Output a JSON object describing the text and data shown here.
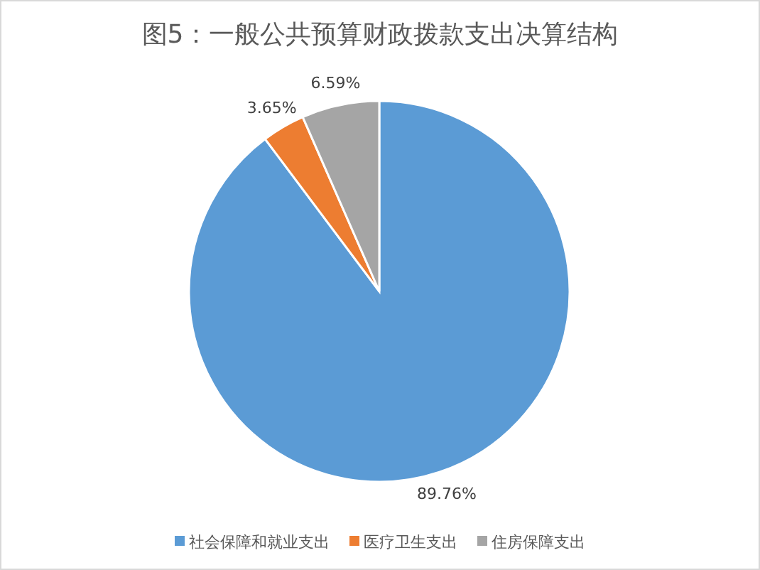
{
  "chart_data": {
    "type": "pie",
    "title": "图5：一般公共预算财政拨款支出决算结构",
    "categories": [
      "社会保障和就业支出",
      "医疗卫生支出",
      "住房保障支出"
    ],
    "values": [
      89.76,
      3.65,
      6.59
    ],
    "colors": [
      "#5b9bd5",
      "#ed7d31",
      "#a5a5a5"
    ],
    "value_labels": [
      "89.76%",
      "3.65%",
      "6.59%"
    ],
    "legend": "bottom"
  }
}
